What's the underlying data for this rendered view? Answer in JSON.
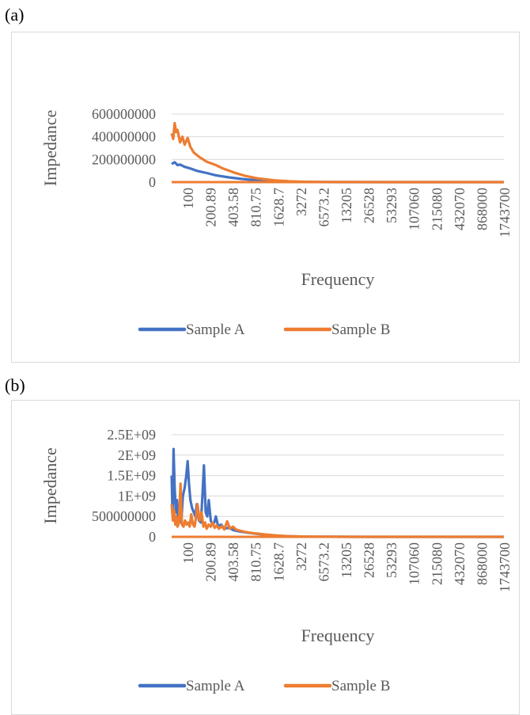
{
  "panels": [
    {
      "label": "(a)"
    },
    {
      "label": "(b)"
    }
  ],
  "chart_data": [
    {
      "type": "line",
      "title": "",
      "xlabel": "Frequency",
      "ylabel": "Impedance",
      "ylim": [
        0,
        600000000
      ],
      "y_ticks": [
        "0",
        "200000000",
        "400000000",
        "600000000"
      ],
      "x_ticks": [
        "100",
        "200.89",
        "403.58",
        "810.75",
        "1628.7",
        "3272",
        "6573.2",
        "13205",
        "26528",
        "53293",
        "107060",
        "215080",
        "432070",
        "868000",
        "1743700"
      ],
      "x_range_log10": [
        2,
        6.52
      ],
      "grid": true,
      "legend": "bottom",
      "colors": [
        "#4472c4",
        "#ed7d31"
      ],
      "series": [
        {
          "name": "Sample A",
          "x": [
            100,
            110,
            120,
            130,
            150,
            180,
            220,
            300,
            400,
            600,
            900,
            1400,
            2200,
            3500,
            5500,
            9000,
            20000,
            100000,
            3300000
          ],
          "values": [
            160000000,
            175000000,
            150000000,
            155000000,
            135000000,
            120000000,
            100000000,
            80000000,
            60000000,
            42000000,
            28000000,
            17000000,
            9000000,
            4500000,
            2000000,
            900000,
            300000,
            100000,
            50000
          ]
        },
        {
          "name": "Sample B",
          "x": [
            100,
            105,
            110,
            115,
            120,
            130,
            140,
            150,
            165,
            180,
            200,
            240,
            300,
            400,
            500,
            700,
            1000,
            1500,
            2500,
            4000,
            6500,
            11000,
            25000,
            100000,
            3300000
          ],
          "values": [
            430000000,
            380000000,
            520000000,
            440000000,
            460000000,
            350000000,
            400000000,
            330000000,
            390000000,
            310000000,
            260000000,
            220000000,
            180000000,
            150000000,
            120000000,
            85000000,
            55000000,
            32000000,
            16000000,
            7000000,
            3000000,
            1200000,
            400000,
            150000,
            80000
          ]
        }
      ]
    },
    {
      "type": "line",
      "title": "",
      "xlabel": "Frequency",
      "ylabel": "Impedance",
      "ylim": [
        0,
        2500000000
      ],
      "y_ticks": [
        "0",
        "500000000",
        "1E+09",
        "1.5E+09",
        "2E+09",
        "2.5E+09"
      ],
      "x_ticks": [
        "100",
        "200.89",
        "403.58",
        "810.75",
        "1628.7",
        "3272",
        "6573.2",
        "13205",
        "26528",
        "53293",
        "107060",
        "215080",
        "432070",
        "868000",
        "1743700"
      ],
      "x_range_log10": [
        2,
        6.52
      ],
      "grid": true,
      "legend": "bottom",
      "colors": [
        "#4472c4",
        "#ed7d31"
      ],
      "series": [
        {
          "name": "Sample A",
          "x": [
            100,
            103,
            106,
            110,
            114,
            118,
            122,
            128,
            135,
            142,
            150,
            158,
            165,
            172,
            180,
            190,
            200,
            210,
            220,
            235,
            250,
            262,
            275,
            290,
            305,
            320,
            340,
            360,
            380,
            400,
            430,
            470,
            520,
            600,
            700,
            850,
            1100,
            1500,
            2200,
            3300,
            5000,
            8000,
            15000,
            50000,
            3300000
          ],
          "values": [
            1500000000,
            500000000,
            2150000000,
            1200000000,
            600000000,
            900000000,
            400000000,
            700000000,
            350000000,
            1000000000,
            1200000000,
            1500000000,
            1850000000,
            1300000000,
            900000000,
            700000000,
            600000000,
            500000000,
            800000000,
            400000000,
            350000000,
            1000000000,
            1750000000,
            600000000,
            500000000,
            900000000,
            400000000,
            300000000,
            350000000,
            500000000,
            250000000,
            300000000,
            200000000,
            220000000,
            160000000,
            130000000,
            100000000,
            70000000,
            40000000,
            20000000,
            9000000,
            4000000,
            1500000,
            500000,
            100000
          ]
        },
        {
          "name": "Sample B",
          "x": [
            100,
            104,
            108,
            112,
            116,
            120,
            126,
            132,
            138,
            145,
            152,
            160,
            168,
            176,
            185,
            195,
            205,
            215,
            225,
            240,
            255,
            270,
            285,
            300,
            320,
            340,
            360,
            385,
            410,
            440,
            480,
            520,
            570,
            620,
            680,
            750,
            850,
            1000,
            1300,
            1800,
            2600,
            4000,
            6500,
            12000,
            30000,
            3300000
          ],
          "values": [
            800000000,
            400000000,
            650000000,
            300000000,
            500000000,
            250000000,
            350000000,
            1300000000,
            300000000,
            250000000,
            400000000,
            300000000,
            350000000,
            250000000,
            550000000,
            300000000,
            250000000,
            500000000,
            800000000,
            400000000,
            600000000,
            250000000,
            350000000,
            200000000,
            300000000,
            250000000,
            350000000,
            220000000,
            280000000,
            200000000,
            260000000,
            180000000,
            380000000,
            200000000,
            250000000,
            180000000,
            150000000,
            120000000,
            90000000,
            60000000,
            35000000,
            15000000,
            6000000,
            2000000,
            600000,
            100000
          ]
        }
      ]
    }
  ]
}
